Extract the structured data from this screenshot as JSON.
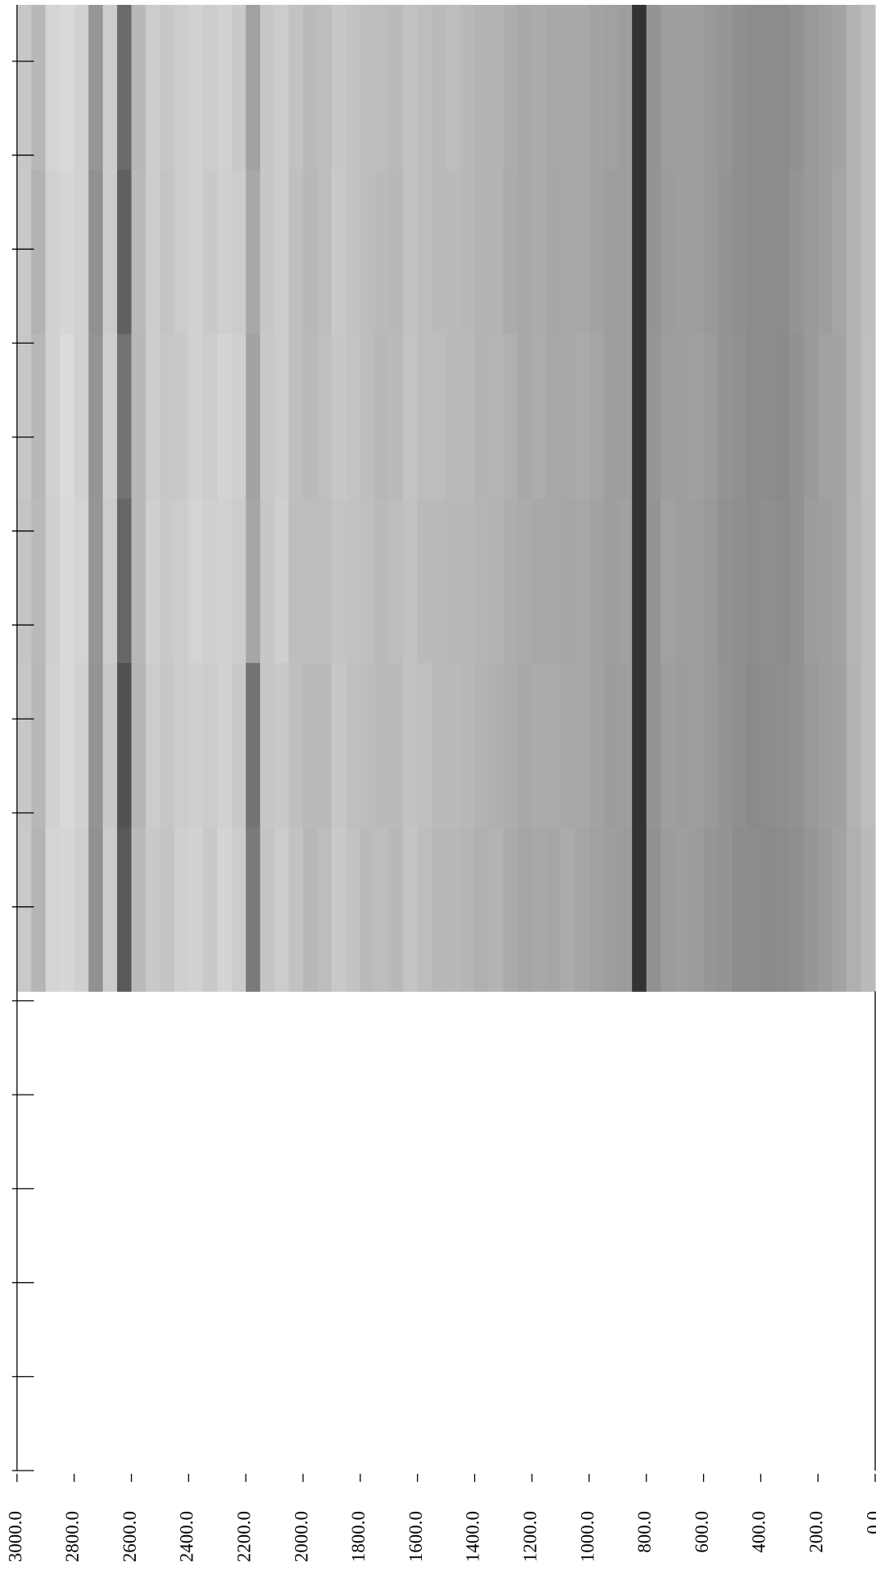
{
  "chart_data": {
    "type": "heatmap",
    "colormap": "gray",
    "zlim": [
      0,
      100
    ],
    "xlim": [
      3000,
      0
    ],
    "ylim": [
      0,
      15.6
    ],
    "xticks": [
      {
        "value": 3000,
        "label": "3000.0"
      },
      {
        "value": 2800,
        "label": "2800.0"
      },
      {
        "value": 2600,
        "label": "2600.0"
      },
      {
        "value": 2400,
        "label": "2400.0"
      },
      {
        "value": 2200,
        "label": "2200.0"
      },
      {
        "value": 2000,
        "label": "2000.0"
      },
      {
        "value": 1800,
        "label": "1800.0"
      },
      {
        "value": 1600,
        "label": "1600.0"
      },
      {
        "value": 1400,
        "label": "1400.0"
      },
      {
        "value": 1200,
        "label": "1200.0"
      },
      {
        "value": 1000,
        "label": "1000.0"
      },
      {
        "value": 800,
        "label": "800.0"
      },
      {
        "value": 600,
        "label": "600.0"
      },
      {
        "value": 400,
        "label": "400.0"
      },
      {
        "value": 200,
        "label": "200.0"
      },
      {
        "value": 0,
        "label": "0.0"
      }
    ],
    "yticks": [
      0,
      1,
      2,
      3,
      4,
      5,
      6,
      7,
      8,
      9,
      10,
      11,
      12,
      13,
      14,
      15
    ],
    "x_bins": [
      3000,
      2950,
      2900,
      2850,
      2800,
      2750,
      2700,
      2650,
      2600,
      2550,
      2500,
      2450,
      2400,
      2350,
      2300,
      2250,
      2200,
      2150,
      2100,
      2050,
      2000,
      1950,
      1900,
      1850,
      1800,
      1750,
      1700,
      1650,
      1600,
      1550,
      1500,
      1450,
      1400,
      1350,
      1300,
      1250,
      1200,
      1150,
      1100,
      1050,
      1000,
      950,
      900,
      850,
      800,
      750,
      700,
      650,
      600,
      550,
      500,
      450,
      400,
      350,
      300,
      250,
      200,
      150,
      100,
      50,
      0
    ],
    "y_bins": [
      5.1,
      6.85,
      8.6,
      10.35,
      12.1,
      13.85,
      15.6
    ],
    "z": [
      [
        79,
        71,
        83,
        84,
        81,
        57,
        80,
        35,
        73,
        79,
        77,
        81,
        82,
        79,
        83,
        80,
        48,
        77,
        80,
        76,
        72,
        74,
        79,
        76,
        73,
        74,
        72,
        77,
        74,
        72,
        72,
        71,
        69,
        70,
        67,
        65,
        66,
        65,
        67,
        65,
        63,
        62,
        61,
        20,
        57,
        61,
        62,
        61,
        59,
        58,
        55,
        55,
        54,
        55,
        56,
        59,
        61,
        64,
        69,
        73
      ],
      [
        78,
        72,
        82,
        85,
        82,
        58,
        79,
        32,
        71,
        80,
        78,
        80,
        81,
        80,
        82,
        79,
        45,
        78,
        79,
        75,
        73,
        73,
        78,
        75,
        74,
        73,
        73,
        76,
        75,
        73,
        73,
        72,
        70,
        69,
        68,
        66,
        67,
        67,
        66,
        66,
        64,
        61,
        62,
        20,
        58,
        62,
        61,
        62,
        60,
        58,
        56,
        54,
        55,
        56,
        57,
        60,
        62,
        63,
        70,
        74
      ],
      [
        77,
        73,
        81,
        85,
        83,
        59,
        80,
        40,
        72,
        81,
        79,
        80,
        83,
        81,
        82,
        80,
        65,
        78,
        81,
        74,
        74,
        74,
        77,
        76,
        75,
        73,
        74,
        76,
        73,
        73,
        72,
        72,
        71,
        70,
        68,
        67,
        66,
        66,
        65,
        66,
        64,
        62,
        63,
        20,
        58,
        63,
        62,
        62,
        60,
        57,
        56,
        55,
        56,
        55,
        57,
        61,
        62,
        64,
        71,
        74
      ],
      [
        78,
        72,
        82,
        86,
        82,
        58,
        81,
        45,
        72,
        80,
        78,
        79,
        82,
        80,
        83,
        81,
        64,
        79,
        80,
        75,
        73,
        75,
        78,
        77,
        74,
        72,
        73,
        77,
        74,
        74,
        73,
        73,
        70,
        71,
        69,
        66,
        68,
        66,
        66,
        67,
        65,
        62,
        62,
        20,
        59,
        62,
        62,
        63,
        61,
        58,
        57,
        55,
        55,
        54,
        57,
        60,
        63,
        64,
        70,
        75
      ],
      [
        79,
        70,
        82,
        84,
        82,
        57,
        80,
        38,
        73,
        80,
        77,
        80,
        82,
        79,
        81,
        80,
        66,
        78,
        80,
        75,
        72,
        74,
        79,
        76,
        74,
        73,
        72,
        76,
        74,
        73,
        73,
        72,
        70,
        70,
        67,
        66,
        67,
        65,
        66,
        66,
        64,
        62,
        62,
        20,
        58,
        61,
        62,
        62,
        60,
        58,
        56,
        55,
        55,
        55,
        58,
        60,
        62,
        65,
        70,
        74
      ],
      [
        78,
        72,
        83,
        85,
        82,
        59,
        80,
        42,
        72,
        80,
        78,
        80,
        82,
        80,
        82,
        79,
        63,
        78,
        80,
        76,
        73,
        74,
        78,
        76,
        74,
        74,
        73,
        76,
        74,
        73,
        74,
        72,
        70,
        70,
        68,
        66,
        67,
        66,
        66,
        66,
        64,
        63,
        62,
        20,
        58,
        62,
        62,
        62,
        60,
        59,
        56,
        55,
        55,
        55,
        57,
        60,
        62,
        64,
        70,
        74
      ]
    ]
  }
}
